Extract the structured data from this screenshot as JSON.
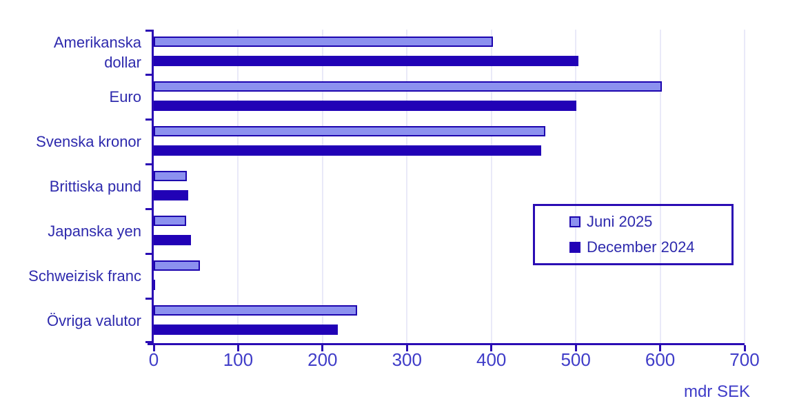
{
  "chart_data": {
    "type": "bar",
    "orientation": "horizontal",
    "categories": [
      "Amerikanska dollar",
      "Euro",
      "Svenska kronor",
      "Brittiska pund",
      "Japanska yen",
      "Schweizisk franc",
      "Övriga valutor"
    ],
    "series": [
      {
        "name": "Juni 2025",
        "color": "#8c91ef",
        "values": [
          402,
          602,
          464,
          39,
          38,
          55,
          241
        ]
      },
      {
        "name": "December 2024",
        "color": "#2102b6",
        "values": [
          503,
          501,
          459,
          41,
          44,
          2,
          218
        ]
      }
    ],
    "title": "",
    "xlabel": "mdr SEK",
    "ylabel": "",
    "xlim": [
      0,
      700
    ],
    "xticks": [
      0,
      100,
      200,
      300,
      400,
      500,
      600,
      700
    ],
    "grid": true,
    "legend_position": "inside-right"
  },
  "colors": {
    "bar_light_fill": "#8c91ef",
    "bar_dark_fill": "#2102b6",
    "bar_border": "#1c04ae",
    "axis": "#2a0cb4",
    "gridline": "#e9e9f8",
    "label_text": "#2e2aad",
    "tick_text": "#3f3cc8",
    "background": "#ffffff"
  }
}
